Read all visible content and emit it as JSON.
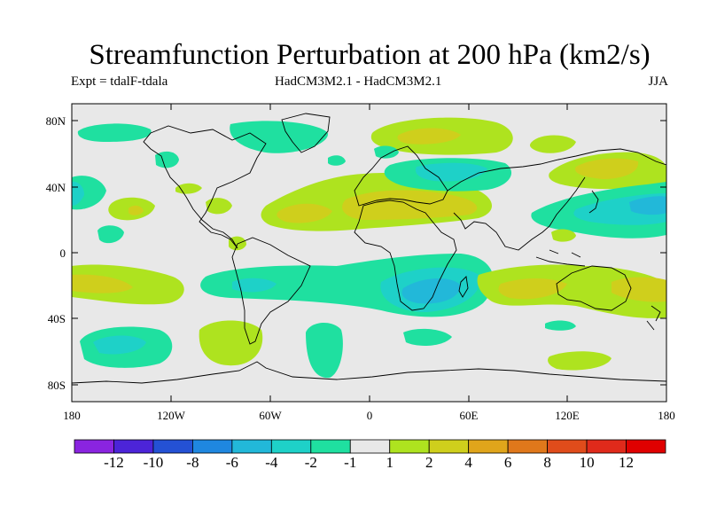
{
  "title": "Streamfunction Perturbation at 200 hPa (km2/s)",
  "experiment": "Expt = tdalF-tdala",
  "model_difference": "HadCM3M2.1 - HadCM3M2.1",
  "season": "JJA",
  "axes": {
    "lat_labels": [
      "80N",
      "40N",
      "0",
      "40S",
      "80S"
    ],
    "lon_labels": [
      "180",
      "120W",
      "60W",
      "0",
      "60E",
      "120E",
      "180"
    ]
  },
  "colorbar": {
    "labels": [
      "-12",
      "-10",
      "-8",
      "-6",
      "-4",
      "-2",
      "-1",
      "1",
      "2",
      "4",
      "6",
      "8",
      "10",
      "12"
    ],
    "colors": [
      "#8a24e0",
      "#4c24d8",
      "#2451d4",
      "#1f87e0",
      "#22b8d9",
      "#1ed1c8",
      "#1fe0a0",
      "#e8e8e8",
      "#aee31f",
      "#cfcf1c",
      "#e0a51b",
      "#e0781b",
      "#e04c1b",
      "#e02a1b",
      "#e00000"
    ]
  },
  "field_colors": {
    "background": "#e8e8e8",
    "neg_weak": "#1fe0a0",
    "neg_mid": "#1ed1c8",
    "neg_strong": "#22b8d9",
    "pos_weak": "#aee31f",
    "pos_mid": "#cfcf1c",
    "pos_strong": "#e0a51b"
  }
}
